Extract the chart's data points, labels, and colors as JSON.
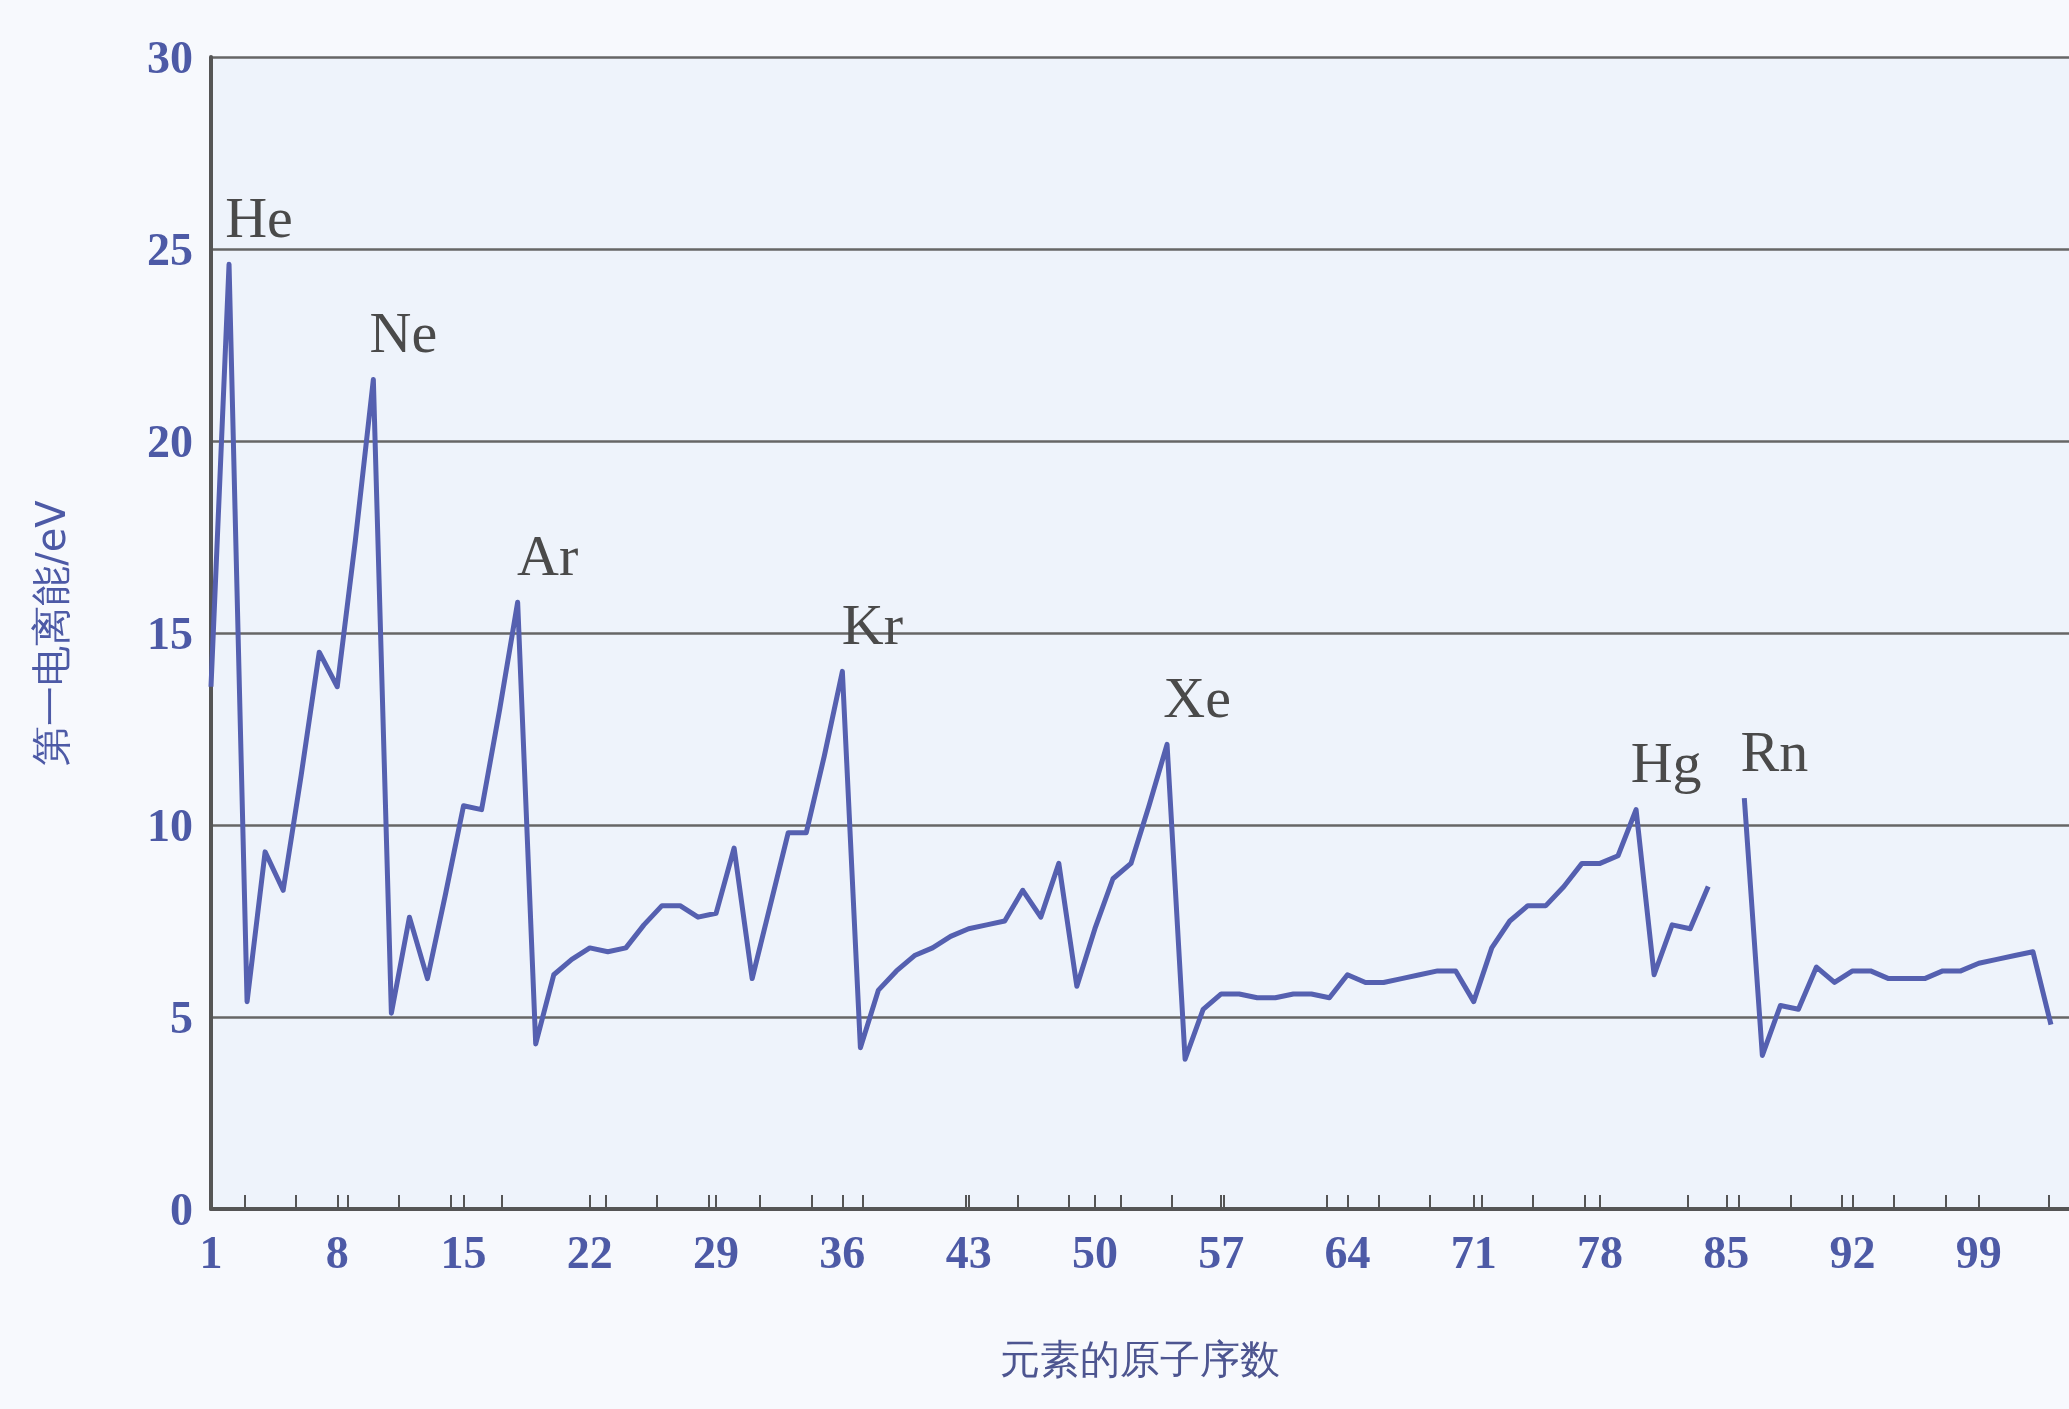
{
  "chart_data": {
    "type": "line",
    "xlabel": "元素的原子序数",
    "ylabel": "第一电离能/eV",
    "x": [
      1,
      2,
      3,
      4,
      5,
      6,
      7,
      8,
      9,
      10,
      11,
      12,
      13,
      14,
      15,
      16,
      17,
      18,
      19,
      20,
      21,
      22,
      23,
      24,
      25,
      26,
      27,
      28,
      29,
      30,
      31,
      32,
      33,
      34,
      35,
      36,
      37,
      38,
      39,
      40,
      41,
      42,
      43,
      44,
      45,
      46,
      47,
      48,
      49,
      50,
      51,
      52,
      53,
      54,
      55,
      56,
      57,
      58,
      59,
      60,
      61,
      62,
      63,
      64,
      65,
      66,
      67,
      68,
      69,
      70,
      71,
      72,
      73,
      74,
      75,
      76,
      77,
      78,
      79,
      80,
      81,
      82,
      83,
      84,
      85,
      86,
      87,
      88,
      89,
      90,
      91,
      92,
      93,
      94,
      95,
      96,
      97,
      98,
      99,
      100,
      101,
      102,
      103
    ],
    "series": [
      {
        "color": "#5560b0",
        "values": [
          13.6,
          24.6,
          5.4,
          9.3,
          8.3,
          11.3,
          14.5,
          13.6,
          17.4,
          21.6,
          5.1,
          7.6,
          6.0,
          8.2,
          10.5,
          10.4,
          13.0,
          15.8,
          4.3,
          6.1,
          6.5,
          6.8,
          6.7,
          6.8,
          7.4,
          7.9,
          7.9,
          7.6,
          7.7,
          9.4,
          6.0,
          7.9,
          9.8,
          9.8,
          11.8,
          14.0,
          4.2,
          5.7,
          6.2,
          6.6,
          6.8,
          7.1,
          7.3,
          7.4,
          7.5,
          8.3,
          7.6,
          9.0,
          5.8,
          7.3,
          8.6,
          9.0,
          10.5,
          12.1,
          3.9,
          5.2,
          5.6,
          5.6,
          5.5,
          5.5,
          5.6,
          5.6,
          5.5,
          6.1,
          5.9,
          5.9,
          6.0,
          6.1,
          6.2,
          6.2,
          5.4,
          6.8,
          7.5,
          7.9,
          7.9,
          8.4,
          9.0,
          9.0,
          9.2,
          10.4,
          6.1,
          7.4,
          7.3,
          8.4,
          null,
          10.7,
          4.0,
          5.3,
          5.2,
          6.3,
          5.9,
          6.2,
          6.2,
          6.0,
          6.0,
          6.0,
          6.2,
          6.2,
          6.4,
          6.5,
          6.6,
          6.7,
          4.8
        ]
      }
    ],
    "xlim": [
      1,
      104
    ],
    "xticks": [
      1,
      8,
      15,
      22,
      29,
      36,
      43,
      50,
      57,
      64,
      71,
      78,
      85,
      92,
      99
    ],
    "ylim": [
      0,
      30
    ],
    "yticks": [
      0,
      5,
      10,
      15,
      20,
      25,
      30
    ],
    "grid": "y",
    "marker": "none",
    "line_style": "solid",
    "annotations": [
      {
        "text": "He",
        "x": 2,
        "y": 24.6
      },
      {
        "text": "Ne",
        "x": 10,
        "y": 21.6
      },
      {
        "text": "Ar",
        "x": 18,
        "y": 15.8
      },
      {
        "text": "Kr",
        "x": 36,
        "y": 14.0
      },
      {
        "text": "Xe",
        "x": 54,
        "y": 12.1
      },
      {
        "text": "Hg",
        "x": 80,
        "y": 10.4
      },
      {
        "text": "Rn",
        "x": 86,
        "y": 10.7
      }
    ]
  }
}
